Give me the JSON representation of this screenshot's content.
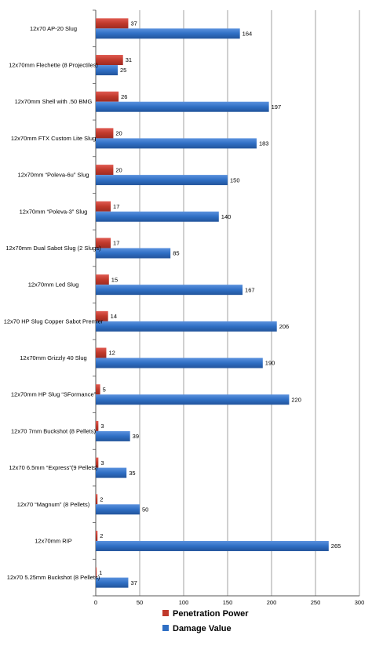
{
  "chart_data": {
    "type": "bar",
    "orientation": "horizontal",
    "categories": [
      "12x70 AP-20 Slug",
      "12x70mm Flechette (8 Projectiles)",
      "12x70mm Shell with .50 BMG",
      "12x70mm FTX Custom Lite Slug",
      "12x70mm “Poleva-6u” Slug",
      "12x70mm “Poleva-3” Slug",
      "12x70mm Dual Sabot Slug (2 Slugs)",
      "12x70mm Led Slug",
      "12x70 HP Slug Copper Sabot Premier",
      "12x70mm Grizzly 40 Slug",
      "12x70mm HP Slug “SFormance”",
      "12x70 7mm Buckshot (8 Pellets)",
      "12x70 6.5mm “Express”(9  Pellets)",
      "12x70 “Magnum” (8 Pellets)",
      "12x70mm RIP",
      "12x70 5.25mm Buckshot (8 Pellets)"
    ],
    "series": [
      {
        "name": "Penetration Power",
        "color": "#c0392b",
        "values": [
          37,
          31,
          26,
          20,
          20,
          17,
          17,
          15,
          14,
          12,
          5,
          3,
          3,
          2,
          2,
          1
        ]
      },
      {
        "name": "Damage Value",
        "color": "#2f6fc4",
        "values": [
          164,
          25,
          197,
          183,
          150,
          140,
          85,
          167,
          206,
          190,
          220,
          39,
          35,
          50,
          265,
          37
        ]
      }
    ],
    "xlim": [
      0,
      300
    ],
    "xticks": [
      0,
      50,
      100,
      150,
      200,
      250,
      300
    ],
    "grid": true,
    "legend": "bottom",
    "legend_order": [
      "Penetration Power",
      "Damage Value"
    ]
  }
}
